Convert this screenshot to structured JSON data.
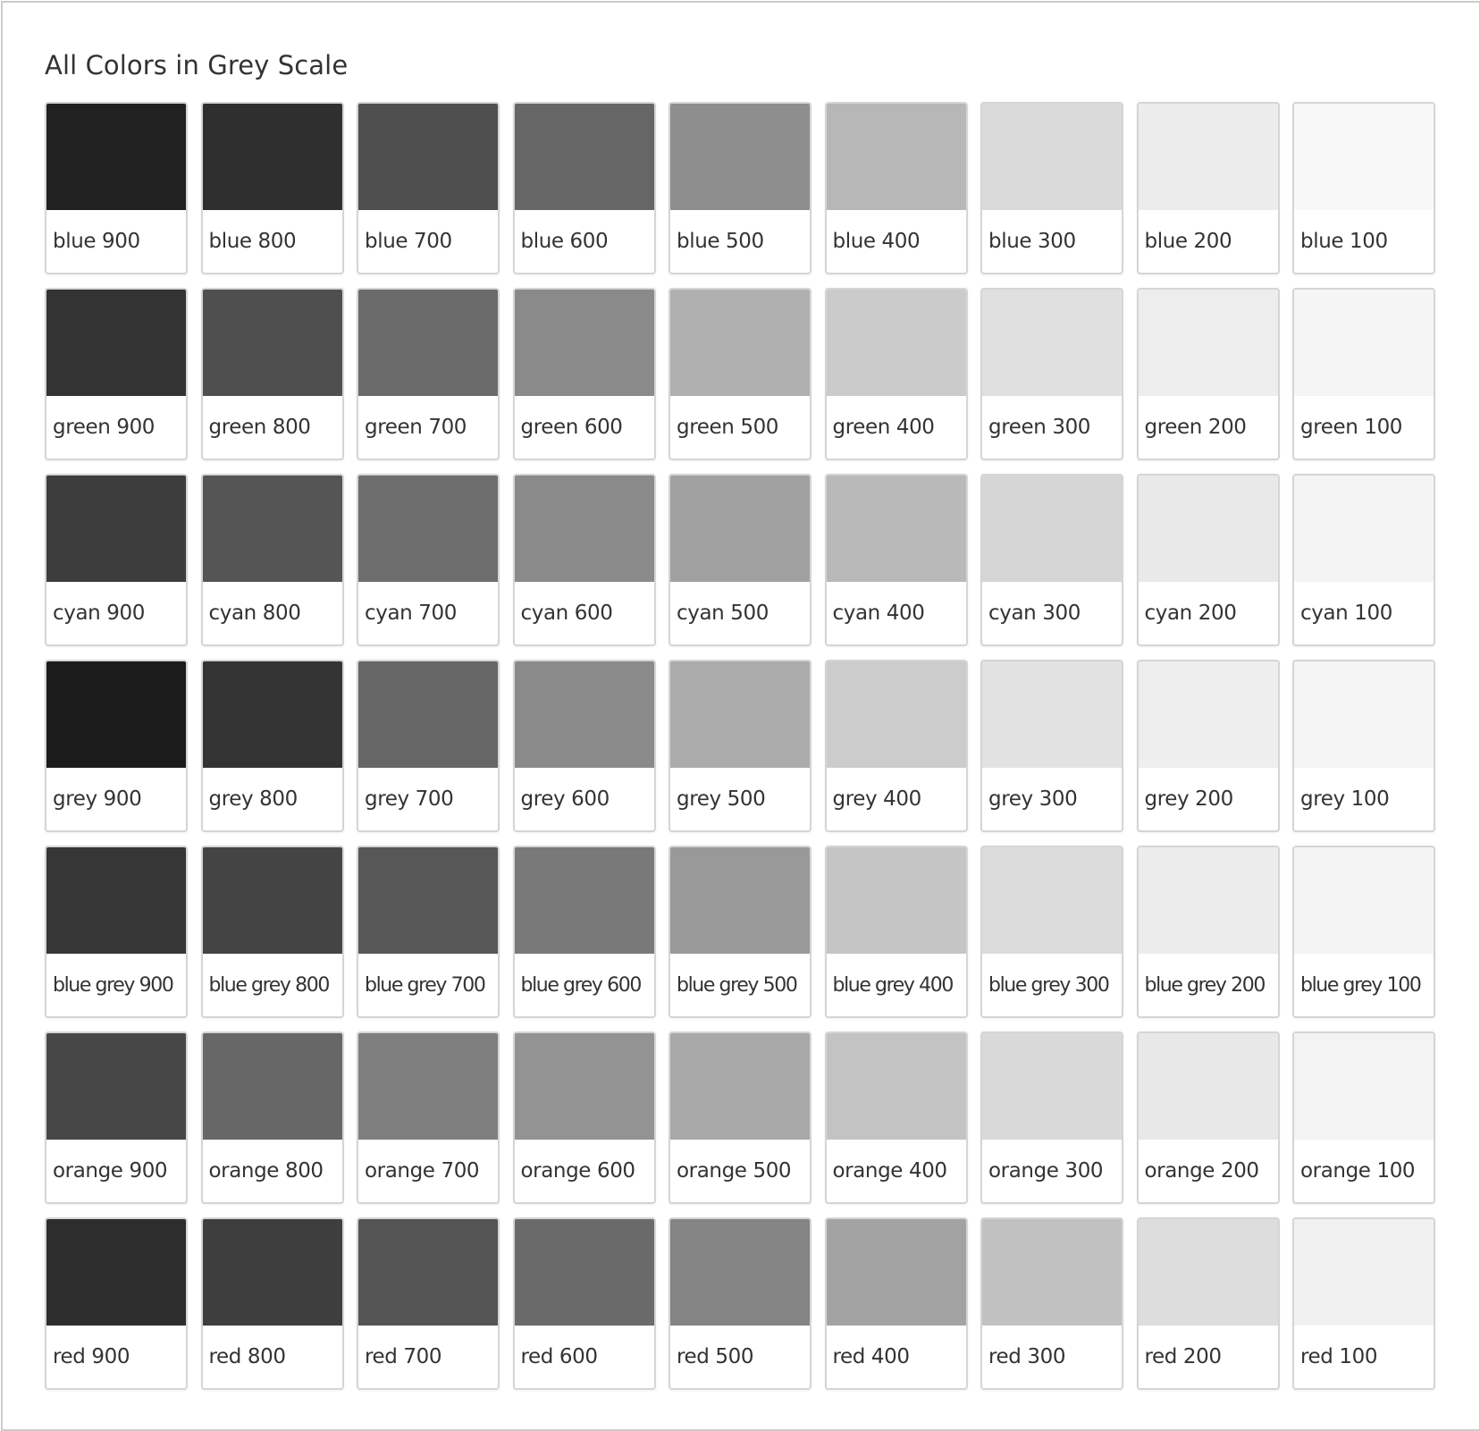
{
  "title": "All Colors in Grey Scale",
  "swatches": [
    {
      "label": "blue 900",
      "color": "#212121"
    },
    {
      "label": "blue 800",
      "color": "#2f2f2f"
    },
    {
      "label": "blue 700",
      "color": "#4f4f4f"
    },
    {
      "label": "blue 600",
      "color": "#666666"
    },
    {
      "label": "blue 500",
      "color": "#8e8e8e"
    },
    {
      "label": "blue 400",
      "color": "#b7b7b7"
    },
    {
      "label": "blue 300",
      "color": "#dadada"
    },
    {
      "label": "blue 200",
      "color": "#ececec"
    },
    {
      "label": "blue 100",
      "color": "#f8f8f8"
    },
    {
      "label": "green 900",
      "color": "#333333"
    },
    {
      "label": "green 800",
      "color": "#4f4f4f"
    },
    {
      "label": "green 700",
      "color": "#6b6b6b"
    },
    {
      "label": "green 600",
      "color": "#8a8a8a"
    },
    {
      "label": "green 500",
      "color": "#b0b0b0"
    },
    {
      "label": "green 400",
      "color": "#cbcbcb"
    },
    {
      "label": "green 300",
      "color": "#e0e0e0"
    },
    {
      "label": "green 200",
      "color": "#ededed"
    },
    {
      "label": "green 100",
      "color": "#f5f5f5"
    },
    {
      "label": "cyan 900",
      "color": "#3d3d3d"
    },
    {
      "label": "cyan 800",
      "color": "#555555"
    },
    {
      "label": "cyan 700",
      "color": "#6e6e6e"
    },
    {
      "label": "cyan 600",
      "color": "#8a8a8a"
    },
    {
      "label": "cyan 500",
      "color": "#a1a1a1"
    },
    {
      "label": "cyan 400",
      "color": "#b9b9b9"
    },
    {
      "label": "cyan 300",
      "color": "#d5d5d5"
    },
    {
      "label": "cyan 200",
      "color": "#e9e9e9"
    },
    {
      "label": "cyan 100",
      "color": "#f4f4f4"
    },
    {
      "label": "grey 900",
      "color": "#1b1b1b"
    },
    {
      "label": "grey 800",
      "color": "#333333"
    },
    {
      "label": "grey 700",
      "color": "#666666"
    },
    {
      "label": "grey 600",
      "color": "#8a8a8a"
    },
    {
      "label": "grey 500",
      "color": "#ababab"
    },
    {
      "label": "grey 400",
      "color": "#cccccc"
    },
    {
      "label": "grey 300",
      "color": "#e2e2e2"
    },
    {
      "label": "grey 200",
      "color": "#eeeeee"
    },
    {
      "label": "grey 100",
      "color": "#f5f5f5"
    },
    {
      "label": "blue grey 900",
      "color": "#363636"
    },
    {
      "label": "blue grey 800",
      "color": "#444444"
    },
    {
      "label": "blue grey 700",
      "color": "#575757"
    },
    {
      "label": "blue grey 600",
      "color": "#797979"
    },
    {
      "label": "blue grey 500",
      "color": "#999999"
    },
    {
      "label": "blue grey 400",
      "color": "#c5c5c5"
    },
    {
      "label": "blue grey 300",
      "color": "#dcdcdc"
    },
    {
      "label": "blue grey 200",
      "color": "#ececec"
    },
    {
      "label": "blue grey 100",
      "color": "#f4f4f4"
    },
    {
      "label": "orange 900",
      "color": "#474747"
    },
    {
      "label": "orange 800",
      "color": "#676767"
    },
    {
      "label": "orange 700",
      "color": "#7f7f7f"
    },
    {
      "label": "orange 600",
      "color": "#939393"
    },
    {
      "label": "orange 500",
      "color": "#a8a8a8"
    },
    {
      "label": "orange 400",
      "color": "#c3c3c3"
    },
    {
      "label": "orange 300",
      "color": "#d9d9d9"
    },
    {
      "label": "orange 200",
      "color": "#e8e8e8"
    },
    {
      "label": "orange 100",
      "color": "#f3f3f3"
    },
    {
      "label": "red 900",
      "color": "#2d2d2d"
    },
    {
      "label": "red 800",
      "color": "#3e3e3e"
    },
    {
      "label": "red 700",
      "color": "#545454"
    },
    {
      "label": "red 600",
      "color": "#6a6a6a"
    },
    {
      "label": "red 500",
      "color": "#848484"
    },
    {
      "label": "red 400",
      "color": "#a3a3a3"
    },
    {
      "label": "red 300",
      "color": "#c1c1c1"
    },
    {
      "label": "red 200",
      "color": "#dddddd"
    },
    {
      "label": "red 100",
      "color": "#f1f1f1"
    }
  ]
}
